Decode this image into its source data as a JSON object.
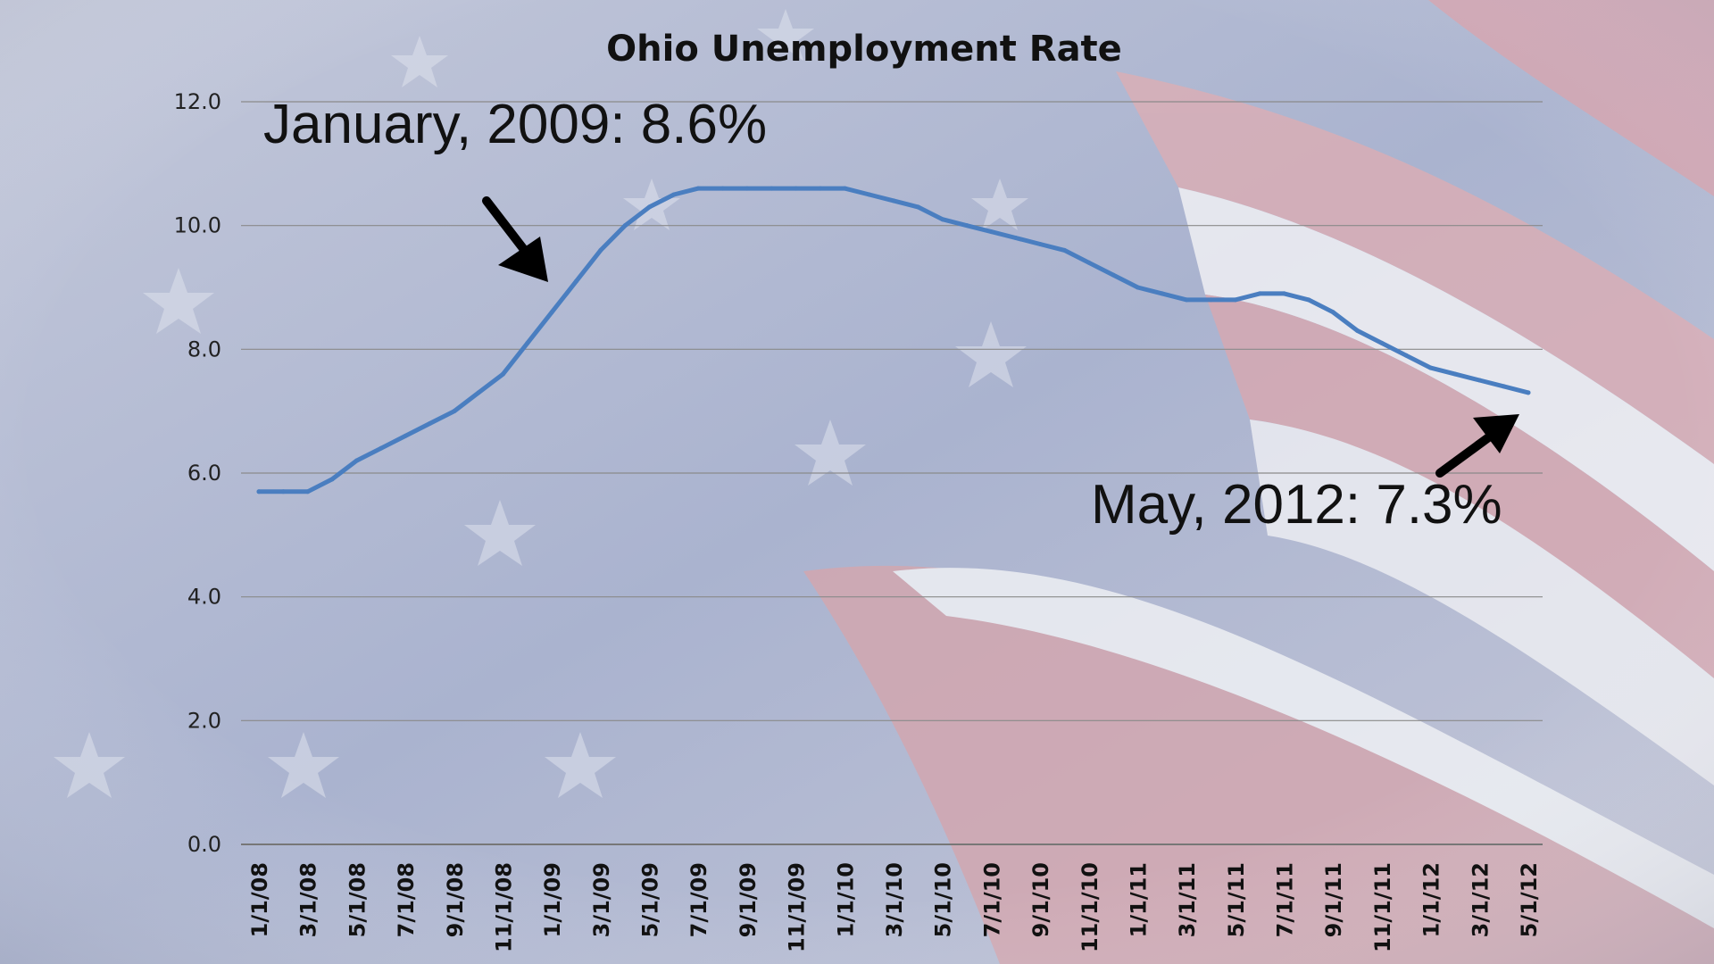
{
  "chart_data": {
    "type": "line",
    "title": "Ohio Unemployment Rate",
    "xlabel": "",
    "ylabel": "",
    "ylim": [
      0,
      12
    ],
    "yticks": [
      "0.0",
      "2.0",
      "4.0",
      "6.0",
      "8.0",
      "10.0",
      "12.0"
    ],
    "grid": true,
    "legend": "none",
    "x_tick_labels": [
      "1/1/08",
      "3/1/08",
      "5/1/08",
      "7/1/08",
      "9/1/08",
      "11/1/08",
      "1/1/09",
      "3/1/09",
      "5/1/09",
      "7/1/09",
      "9/1/09",
      "11/1/09",
      "1/1/10",
      "3/1/10",
      "5/1/10",
      "7/1/10",
      "9/1/10",
      "11/1/10",
      "1/1/11",
      "3/1/11",
      "5/1/11",
      "7/1/11",
      "9/1/11",
      "11/1/11",
      "1/1/12",
      "3/1/12",
      "5/1/12"
    ],
    "x": [
      "1/1/08",
      "2/1/08",
      "3/1/08",
      "4/1/08",
      "5/1/08",
      "6/1/08",
      "7/1/08",
      "8/1/08",
      "9/1/08",
      "10/1/08",
      "11/1/08",
      "12/1/08",
      "1/1/09",
      "2/1/09",
      "3/1/09",
      "4/1/09",
      "5/1/09",
      "6/1/09",
      "7/1/09",
      "8/1/09",
      "9/1/09",
      "10/1/09",
      "11/1/09",
      "12/1/09",
      "1/1/10",
      "2/1/10",
      "3/1/10",
      "4/1/10",
      "5/1/10",
      "6/1/10",
      "7/1/10",
      "8/1/10",
      "9/1/10",
      "10/1/10",
      "11/1/10",
      "12/1/10",
      "1/1/11",
      "2/1/11",
      "3/1/11",
      "4/1/11",
      "5/1/11",
      "6/1/11",
      "7/1/11",
      "8/1/11",
      "9/1/11",
      "10/1/11",
      "11/1/11",
      "12/1/11",
      "1/1/12",
      "2/1/12",
      "3/1/12",
      "4/1/12",
      "5/1/12"
    ],
    "series": [
      {
        "values": [
          5.7,
          5.7,
          5.7,
          5.9,
          6.2,
          6.4,
          6.6,
          6.8,
          7.0,
          7.3,
          7.6,
          8.1,
          8.6,
          9.1,
          9.6,
          10.0,
          10.3,
          10.5,
          10.6,
          10.6,
          10.6,
          10.6,
          10.6,
          10.6,
          10.6,
          10.5,
          10.4,
          10.3,
          10.1,
          10.0,
          9.9,
          9.8,
          9.7,
          9.6,
          9.4,
          9.2,
          9.0,
          8.9,
          8.8,
          8.8,
          8.8,
          8.9,
          8.9,
          8.8,
          8.6,
          8.3,
          8.1,
          7.9,
          7.7,
          7.6,
          7.5,
          7.4,
          7.3
        ],
        "color": "#4a7ec0"
      }
    ],
    "annotations": [
      {
        "text": "January, 2009: 8.6%",
        "x": "1/1/09",
        "y": 8.6
      },
      {
        "text": "May, 2012: 7.3%",
        "x": "5/1/12",
        "y": 7.3
      }
    ]
  }
}
